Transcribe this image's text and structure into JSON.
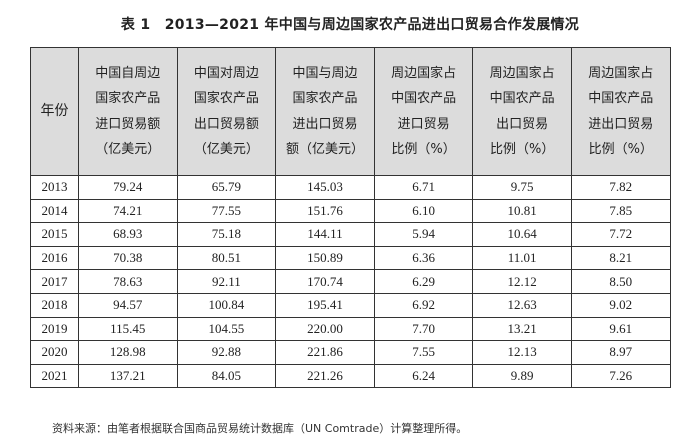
{
  "title": "表 1　2013—2021 年中国与周边国家农产品进出口贸易合作发展情况",
  "table": {
    "year_header": "年份",
    "headers": [
      [
        "中国自周边",
        "国家农产品",
        "进口贸易额",
        "（亿美元）"
      ],
      [
        "中国对周边",
        "国家农产品",
        "出口贸易额",
        "（亿美元）"
      ],
      [
        "中国与周边",
        "国家农产品",
        "进出口贸易",
        "额（亿美元）"
      ],
      [
        "周边国家占",
        "中国农产品",
        "进口贸易",
        "比例（%）"
      ],
      [
        "周边国家占",
        "中国农产品",
        "出口贸易",
        "比例（%）"
      ],
      [
        "周边国家占",
        "中国农产品",
        "进出口贸易",
        "比例（%）"
      ]
    ],
    "rows": [
      [
        "2013",
        "79.24",
        "65.79",
        "145.03",
        "6.71",
        "9.75",
        "7.82"
      ],
      [
        "2014",
        "74.21",
        "77.55",
        "151.76",
        "6.10",
        "10.81",
        "7.85"
      ],
      [
        "2015",
        "68.93",
        "75.18",
        "144.11",
        "5.94",
        "10.64",
        "7.72"
      ],
      [
        "2016",
        "70.38",
        "80.51",
        "150.89",
        "6.36",
        "11.01",
        "8.21"
      ],
      [
        "2017",
        "78.63",
        "92.11",
        "170.74",
        "6.29",
        "12.12",
        "8.50"
      ],
      [
        "2018",
        "94.57",
        "100.84",
        "195.41",
        "6.92",
        "12.63",
        "9.02"
      ],
      [
        "2019",
        "115.45",
        "104.55",
        "220.00",
        "7.70",
        "13.21",
        "9.61"
      ],
      [
        "2020",
        "128.98",
        "92.88",
        "221.86",
        "7.55",
        "12.13",
        "8.97"
      ],
      [
        "2021",
        "137.21",
        "84.05",
        "221.26",
        "6.24",
        "9.89",
        "7.26"
      ]
    ]
  },
  "source": "资料来源：由笔者根据联合国商品贸易统计数据库（UN Comtrade）计算整理所得。"
}
